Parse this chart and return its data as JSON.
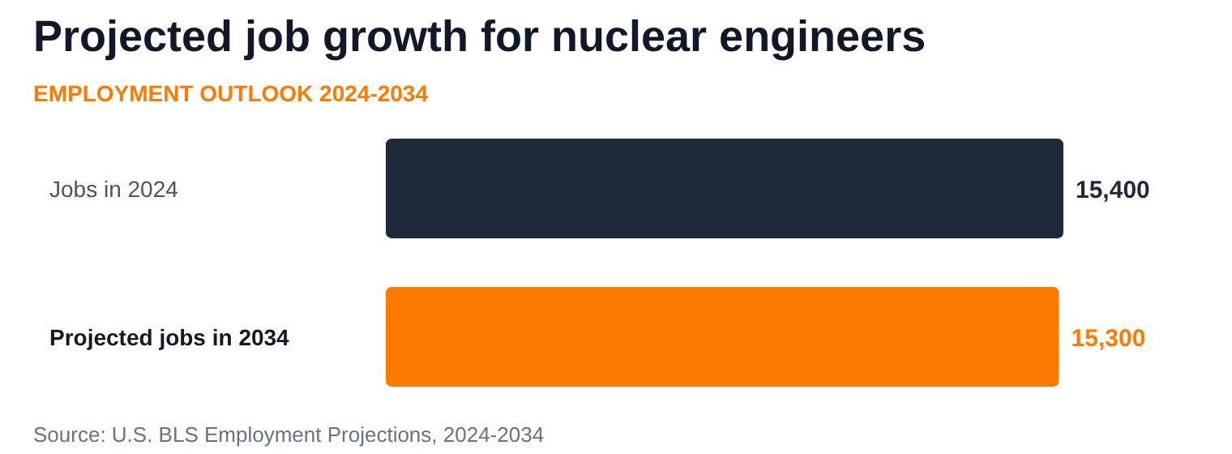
{
  "chart_data": {
    "type": "bar",
    "orientation": "horizontal",
    "subtitle": "EMPLOYMENT OUTLOOK 2024-2034",
    "title": "Projected job growth for nuclear engineers",
    "categories": [
      "Jobs in 2024",
      "Projected jobs in 2034"
    ],
    "values": [
      15400,
      15300
    ],
    "colors": [
      "#1e293b",
      "#ff7a00"
    ],
    "value_labels": [
      "15,400",
      "15,300"
    ],
    "annotations": [
      "Source: U.S. BLS Employment Projections, 2024-2034"
    ]
  }
}
